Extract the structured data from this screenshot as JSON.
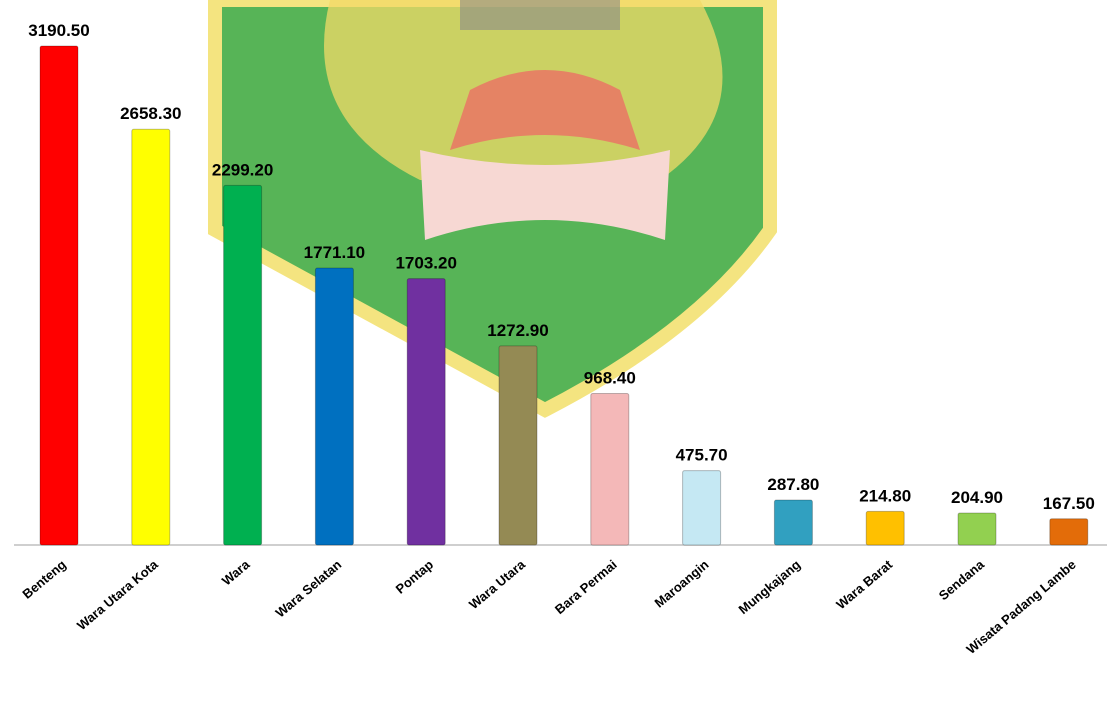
{
  "chart_data": {
    "type": "bar",
    "categories": [
      "Benteng",
      "Wara Utara Kota",
      "Wara",
      "Wara Selatan",
      "Pontap",
      "Wara Utara",
      "Bara Permai",
      "Maroangin",
      "Mungkajang",
      "Wara Barat",
      "Sendana",
      "Wisata Padang Lambe"
    ],
    "values": [
      3190.5,
      2658.3,
      2299.2,
      1771.1,
      1703.2,
      1272.9,
      968.4,
      475.7,
      287.8,
      214.8,
      204.9,
      167.5
    ],
    "value_labels": [
      "3190.50",
      "2658.30",
      "2299.20",
      "1771.10",
      "1703.20",
      "1272.90",
      "968.40",
      "475.70",
      "287.80",
      "214.80",
      "204.90",
      "167.50"
    ],
    "colors": [
      "#ff0000",
      "#ffff00",
      "#00b050",
      "#0070c0",
      "#7030a0",
      "#948a54",
      "#f4b8b8",
      "#c5e8f3",
      "#31a0c0",
      "#ffc000",
      "#92d050",
      "#e36c09"
    ]
  }
}
